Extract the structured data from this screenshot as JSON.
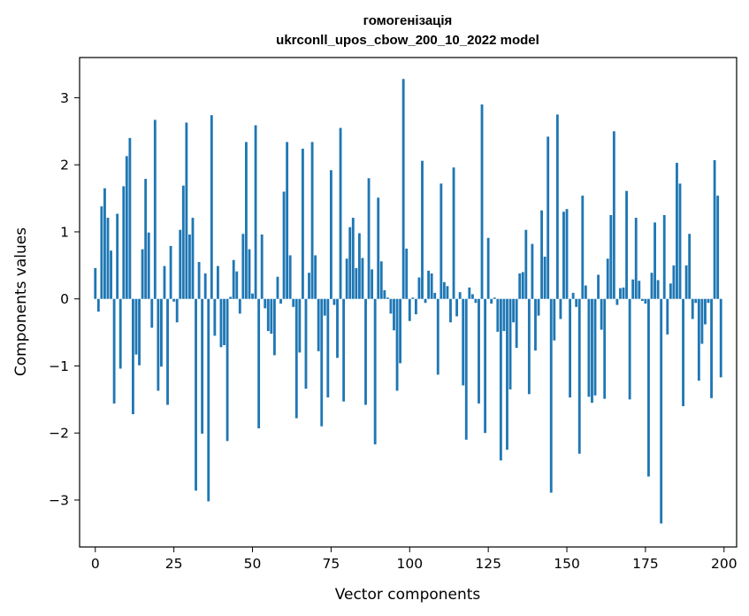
{
  "chart_data": {
    "type": "bar",
    "title": "гомогенізація",
    "subtitle": "ukrconll_upos_cbow_200_10_2022 model",
    "xlabel": "Vector components",
    "ylabel": "Components values",
    "xlim": [
      -5,
      204
    ],
    "ylim": [
      -3.7,
      3.6
    ],
    "xticks": [
      0,
      25,
      50,
      75,
      100,
      125,
      150,
      175,
      200
    ],
    "xtick_labels": [
      "0",
      "25",
      "50",
      "75",
      "100",
      "125",
      "150",
      "175",
      "200"
    ],
    "yticks": [
      -3,
      -2,
      -1,
      0,
      1,
      2,
      3
    ],
    "ytick_labels": [
      "−3",
      "−2",
      "−1",
      "0",
      "1",
      "2",
      "3"
    ],
    "grid": false,
    "color": "#1f77b4",
    "x": [
      0,
      1,
      2,
      3,
      4,
      5,
      6,
      7,
      8,
      9,
      10,
      11,
      12,
      13,
      14,
      15,
      16,
      17,
      18,
      19,
      20,
      21,
      22,
      23,
      24,
      25,
      26,
      27,
      28,
      29,
      30,
      31,
      32,
      33,
      34,
      35,
      36,
      37,
      38,
      39,
      40,
      41,
      42,
      43,
      44,
      45,
      46,
      47,
      48,
      49,
      50,
      51,
      52,
      53,
      54,
      55,
      56,
      57,
      58,
      59,
      60,
      61,
      62,
      63,
      64,
      65,
      66,
      67,
      68,
      69,
      70,
      71,
      72,
      73,
      74,
      75,
      76,
      77,
      78,
      79,
      80,
      81,
      82,
      83,
      84,
      85,
      86,
      87,
      88,
      89,
      90,
      91,
      92,
      93,
      94,
      95,
      96,
      97,
      98,
      99,
      100,
      101,
      102,
      103,
      104,
      105,
      106,
      107,
      108,
      109,
      110,
      111,
      112,
      113,
      114,
      115,
      116,
      117,
      118,
      119,
      120,
      121,
      122,
      123,
      124,
      125,
      126,
      127,
      128,
      129,
      130,
      131,
      132,
      133,
      134,
      135,
      136,
      137,
      138,
      139,
      140,
      141,
      142,
      143,
      144,
      145,
      146,
      147,
      148,
      149,
      150,
      151,
      152,
      153,
      154,
      155,
      156,
      157,
      158,
      159,
      160,
      161,
      162,
      163,
      164,
      165,
      166,
      167,
      168,
      169,
      170,
      171,
      172,
      173,
      174,
      175,
      176,
      177,
      178,
      179,
      180,
      181,
      182,
      183,
      184,
      185,
      186,
      187,
      188,
      189,
      190,
      191,
      192,
      193,
      194,
      195,
      196,
      197,
      198,
      199
    ],
    "values": [
      0.46,
      -0.19,
      1.38,
      1.65,
      1.21,
      0.72,
      -1.56,
      1.27,
      -1.04,
      1.68,
      2.13,
      2.4,
      -1.72,
      -0.83,
      -0.99,
      0.74,
      1.79,
      0.99,
      -0.43,
      2.67,
      -1.37,
      -1.01,
      0.49,
      -1.58,
      0.79,
      -0.04,
      -0.35,
      1.03,
      1.69,
      2.63,
      0.96,
      1.21,
      -2.86,
      0.55,
      -2.01,
      0.38,
      -3.02,
      2.74,
      -0.55,
      0.49,
      -0.72,
      -0.69,
      -2.12,
      0.03,
      0.58,
      0.41,
      -0.22,
      0.97,
      2.34,
      0.74,
      0.08,
      2.59,
      -1.93,
      0.96,
      -0.14,
      -0.48,
      -0.52,
      -0.84,
      0.33,
      -0.07,
      1.6,
      2.34,
      0.65,
      -0.12,
      -1.78,
      -0.8,
      2.24,
      -1.34,
      0.39,
      2.34,
      0.65,
      -0.78,
      -1.9,
      -0.25,
      -1.47,
      1.92,
      -0.09,
      -0.88,
      2.55,
      -1.53,
      0.6,
      1.07,
      1.21,
      0.46,
      0.98,
      0.61,
      -1.58,
      1.8,
      0.44,
      -2.17,
      1.51,
      0.56,
      0.13,
      0.02,
      -0.22,
      -0.47,
      -1.37,
      -0.96,
      3.28,
      0.75,
      -0.33,
      0.02,
      -0.23,
      0.32,
      2.06,
      -0.06,
      0.42,
      0.38,
      0.09,
      -1.13,
      1.72,
      0.25,
      0.19,
      -0.35,
      1.96,
      -0.26,
      0.1,
      -1.29,
      -2.1,
      0.17,
      0.07,
      -0.06,
      -1.56,
      2.9,
      -2.0,
      0.91,
      -0.07,
      0.02,
      -0.49,
      -2.41,
      -0.48,
      -2.25,
      -1.35,
      -0.35,
      -0.73,
      0.38,
      0.4,
      1.03,
      -1.42,
      0.82,
      -0.77,
      -0.25,
      1.32,
      0.63,
      2.42,
      -2.89,
      -0.62,
      2.75,
      -0.3,
      1.3,
      1.34,
      -1.47,
      0.09,
      -0.12,
      -2.31,
      1.54,
      0.2,
      -1.46,
      -1.55,
      -1.44,
      0.36,
      -0.46,
      -1.49,
      0.6,
      1.25,
      2.5,
      -0.09,
      0.16,
      0.17,
      1.61,
      -1.5,
      0.29,
      1.21,
      0.27,
      -0.03,
      -0.07,
      -2.65,
      0.39,
      1.14,
      0.28,
      -3.35,
      1.25,
      -0.53,
      0.23,
      0.5,
      2.03,
      1.72,
      -1.6,
      0.5,
      0.97,
      -0.3,
      -0.06,
      -1.22,
      -0.67,
      -0.38,
      -0.06,
      -1.48,
      2.07,
      1.54,
      -1.17
    ]
  }
}
